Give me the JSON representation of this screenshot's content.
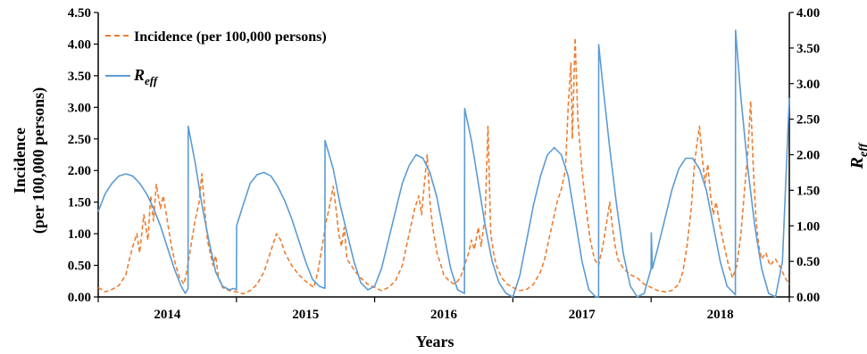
{
  "chart_data": {
    "type": "line",
    "xlabel": "Years",
    "x_tick_labels": [
      "2014",
      "2015",
      "2016",
      "2017",
      "2018"
    ],
    "x_range": [
      2013.5,
      2018.5
    ],
    "ylabel_left": [
      "Incidence",
      "(per 100,000 persons)"
    ],
    "ylim_left": [
      0,
      4.5
    ],
    "yticks_left": [
      "0.00",
      "0.50",
      "1.00",
      "1.50",
      "2.00",
      "2.50",
      "3.00",
      "3.50",
      "4.00",
      "4.50"
    ],
    "ylabel_right": "R",
    "ylabel_right_sub": "eff",
    "ylim_right": [
      0,
      4
    ],
    "yticks_right": [
      "0.00",
      "0.50",
      "1.00",
      "1.50",
      "2.00",
      "2.50",
      "3.00",
      "3.50",
      "4.00"
    ],
    "grid": false,
    "legend_position": "top-left",
    "series": [
      {
        "name": "Incidence (per 100,000 persons)",
        "axis": "left",
        "style": "dashed",
        "color": "#ED7D31",
        "points": [
          [
            2013.5,
            0.15
          ],
          [
            2013.55,
            0.08
          ],
          [
            2013.6,
            0.12
          ],
          [
            2013.65,
            0.18
          ],
          [
            2013.7,
            0.35
          ],
          [
            2013.72,
            0.55
          ],
          [
            2013.75,
            0.8
          ],
          [
            2013.78,
            1.0
          ],
          [
            2013.8,
            0.7
          ],
          [
            2013.83,
            1.3
          ],
          [
            2013.86,
            0.9
          ],
          [
            2013.88,
            1.6
          ],
          [
            2013.9,
            1.2
          ],
          [
            2013.92,
            1.78
          ],
          [
            2013.95,
            1.4
          ],
          [
            2013.97,
            1.6
          ],
          [
            2014.0,
            1.2
          ],
          [
            2014.03,
            0.8
          ],
          [
            2014.06,
            0.5
          ],
          [
            2014.09,
            0.3
          ],
          [
            2014.12,
            0.2
          ],
          [
            2014.14,
            0.4
          ],
          [
            2014.17,
            0.8
          ],
          [
            2014.2,
            1.2
          ],
          [
            2014.23,
            1.5
          ],
          [
            2014.25,
            1.95
          ],
          [
            2014.27,
            1.4
          ],
          [
            2014.29,
            0.9
          ],
          [
            2014.31,
            0.7
          ],
          [
            2014.33,
            0.5
          ],
          [
            2014.35,
            0.65
          ],
          [
            2014.37,
            0.3
          ],
          [
            2014.4,
            0.15
          ],
          [
            2014.45,
            0.1
          ],
          [
            2014.5,
            0.08
          ],
          [
            2014.55,
            0.05
          ],
          [
            2014.6,
            0.1
          ],
          [
            2014.65,
            0.2
          ],
          [
            2014.7,
            0.4
          ],
          [
            2014.73,
            0.6
          ],
          [
            2014.76,
            0.8
          ],
          [
            2014.79,
            1.0
          ],
          [
            2014.82,
            0.9
          ],
          [
            2014.85,
            0.7
          ],
          [
            2014.9,
            0.5
          ],
          [
            2014.95,
            0.35
          ],
          [
            2015.0,
            0.25
          ],
          [
            2015.03,
            0.2
          ],
          [
            2015.06,
            0.15
          ],
          [
            2015.09,
            0.4
          ],
          [
            2015.12,
            0.8
          ],
          [
            2015.15,
            1.2
          ],
          [
            2015.18,
            1.5
          ],
          [
            2015.2,
            1.75
          ],
          [
            2015.22,
            1.4
          ],
          [
            2015.24,
            1.0
          ],
          [
            2015.26,
            0.8
          ],
          [
            2015.28,
            1.1
          ],
          [
            2015.3,
            0.6
          ],
          [
            2015.33,
            0.5
          ],
          [
            2015.36,
            0.4
          ],
          [
            2015.4,
            0.3
          ],
          [
            2015.45,
            0.2
          ],
          [
            2015.5,
            0.15
          ],
          [
            2015.55,
            0.1
          ],
          [
            2015.6,
            0.15
          ],
          [
            2015.65,
            0.25
          ],
          [
            2015.7,
            0.5
          ],
          [
            2015.73,
            0.8
          ],
          [
            2015.76,
            1.1
          ],
          [
            2015.79,
            1.4
          ],
          [
            2015.82,
            1.6
          ],
          [
            2015.84,
            1.3
          ],
          [
            2015.86,
            1.8
          ],
          [
            2015.88,
            2.25
          ],
          [
            2015.9,
            1.5
          ],
          [
            2015.92,
            1.1
          ],
          [
            2015.95,
            0.7
          ],
          [
            2015.98,
            0.5
          ],
          [
            2016.0,
            0.35
          ],
          [
            2016.04,
            0.25
          ],
          [
            2016.08,
            0.2
          ],
          [
            2016.12,
            0.3
          ],
          [
            2016.15,
            0.5
          ],
          [
            2016.18,
            0.7
          ],
          [
            2016.2,
            0.9
          ],
          [
            2016.22,
            0.75
          ],
          [
            2016.25,
            1.1
          ],
          [
            2016.27,
            0.8
          ],
          [
            2016.3,
            1.3
          ],
          [
            2016.32,
            2.7
          ],
          [
            2016.34,
            1.0
          ],
          [
            2016.36,
            0.7
          ],
          [
            2016.38,
            0.5
          ],
          [
            2016.42,
            0.3
          ],
          [
            2016.46,
            0.2
          ],
          [
            2016.5,
            0.15
          ],
          [
            2016.55,
            0.1
          ],
          [
            2016.6,
            0.12
          ],
          [
            2016.65,
            0.2
          ],
          [
            2016.7,
            0.4
          ],
          [
            2016.73,
            0.6
          ],
          [
            2016.76,
            0.9
          ],
          [
            2016.79,
            1.2
          ],
          [
            2016.82,
            1.5
          ],
          [
            2016.85,
            1.7
          ],
          [
            2016.88,
            2.0
          ],
          [
            2016.9,
            3.0
          ],
          [
            2016.92,
            3.7
          ],
          [
            2016.93,
            2.5
          ],
          [
            2016.95,
            4.1
          ],
          [
            2016.97,
            2.8
          ],
          [
            2017.0,
            2.0
          ],
          [
            2017.03,
            1.4
          ],
          [
            2017.06,
            0.9
          ],
          [
            2017.09,
            0.6
          ],
          [
            2017.12,
            0.5
          ],
          [
            2017.15,
            0.8
          ],
          [
            2017.18,
            1.2
          ],
          [
            2017.2,
            1.5
          ],
          [
            2017.22,
            1.1
          ],
          [
            2017.24,
            0.8
          ],
          [
            2017.26,
            0.6
          ],
          [
            2017.3,
            0.45
          ],
          [
            2017.35,
            0.35
          ],
          [
            2017.4,
            0.3
          ],
          [
            2017.45,
            0.2
          ],
          [
            2017.5,
            0.15
          ],
          [
            2017.55,
            0.1
          ],
          [
            2017.6,
            0.08
          ],
          [
            2017.65,
            0.1
          ],
          [
            2017.7,
            0.2
          ],
          [
            2017.73,
            0.4
          ],
          [
            2017.76,
            0.8
          ],
          [
            2017.79,
            1.4
          ],
          [
            2017.81,
            2.0
          ],
          [
            2017.83,
            2.4
          ],
          [
            2017.85,
            2.7
          ],
          [
            2017.87,
            2.2
          ],
          [
            2017.89,
            1.8
          ],
          [
            2017.91,
            2.1
          ],
          [
            2017.93,
            1.6
          ],
          [
            2017.95,
            1.3
          ],
          [
            2017.97,
            1.5
          ],
          [
            2018.0,
            1.1
          ],
          [
            2018.03,
            0.8
          ],
          [
            2018.06,
            0.5
          ],
          [
            2018.09,
            0.3
          ],
          [
            2018.12,
            0.5
          ],
          [
            2018.15,
            1.0
          ],
          [
            2018.18,
            1.8
          ],
          [
            2018.2,
            2.3
          ],
          [
            2018.22,
            3.1
          ],
          [
            2018.24,
            2.0
          ],
          [
            2018.26,
            1.2
          ],
          [
            2018.28,
            0.8
          ],
          [
            2018.3,
            0.6
          ],
          [
            2018.33,
            0.7
          ],
          [
            2018.36,
            0.5
          ],
          [
            2018.4,
            0.6
          ],
          [
            2018.44,
            0.45
          ],
          [
            2018.47,
            0.3
          ],
          [
            2018.5,
            0.2
          ]
        ]
      },
      {
        "name_base": "R",
        "name_sub": "eff",
        "axis": "right",
        "style": "solid",
        "color": "#5B9BD5",
        "points": [
          [
            2013.5,
            1.2
          ],
          [
            2013.55,
            1.45
          ],
          [
            2013.6,
            1.6
          ],
          [
            2013.65,
            1.7
          ],
          [
            2013.7,
            1.73
          ],
          [
            2013.75,
            1.7
          ],
          [
            2013.8,
            1.6
          ],
          [
            2013.85,
            1.45
          ],
          [
            2013.9,
            1.25
          ],
          [
            2013.95,
            1.0
          ],
          [
            2014.0,
            0.7
          ],
          [
            2014.05,
            0.4
          ],
          [
            2014.1,
            0.15
          ],
          [
            2014.13,
            0.05
          ],
          [
            2014.15,
            0.12
          ],
          [
            2014.151,
            2.4
          ],
          [
            2014.2,
            1.9
          ],
          [
            2014.25,
            1.3
          ],
          [
            2014.3,
            0.8
          ],
          [
            2014.35,
            0.35
          ],
          [
            2014.4,
            0.15
          ],
          [
            2014.45,
            0.1
          ],
          [
            2014.48,
            0.12
          ],
          [
            2014.5,
            0.1
          ],
          [
            2014.501,
            1.0
          ],
          [
            2014.55,
            1.3
          ],
          [
            2014.6,
            1.6
          ],
          [
            2014.65,
            1.72
          ],
          [
            2014.7,
            1.75
          ],
          [
            2014.75,
            1.7
          ],
          [
            2014.8,
            1.55
          ],
          [
            2014.85,
            1.35
          ],
          [
            2014.9,
            1.1
          ],
          [
            2014.95,
            0.8
          ],
          [
            2015.0,
            0.5
          ],
          [
            2015.05,
            0.25
          ],
          [
            2015.1,
            0.15
          ],
          [
            2015.14,
            0.12
          ],
          [
            2015.141,
            2.2
          ],
          [
            2015.2,
            1.8
          ],
          [
            2015.25,
            1.3
          ],
          [
            2015.3,
            0.9
          ],
          [
            2015.35,
            0.5
          ],
          [
            2015.4,
            0.2
          ],
          [
            2015.45,
            0.1
          ],
          [
            2015.5,
            0.15
          ],
          [
            2015.55,
            0.4
          ],
          [
            2015.6,
            0.8
          ],
          [
            2015.65,
            1.2
          ],
          [
            2015.7,
            1.6
          ],
          [
            2015.75,
            1.85
          ],
          [
            2015.8,
            2.0
          ],
          [
            2015.85,
            1.95
          ],
          [
            2015.9,
            1.75
          ],
          [
            2015.95,
            1.4
          ],
          [
            2016.0,
            0.9
          ],
          [
            2016.05,
            0.4
          ],
          [
            2016.1,
            0.1
          ],
          [
            2016.15,
            0.05
          ],
          [
            2016.151,
            2.65
          ],
          [
            2016.2,
            2.2
          ],
          [
            2016.25,
            1.6
          ],
          [
            2016.3,
            1.0
          ],
          [
            2016.35,
            0.5
          ],
          [
            2016.4,
            0.2
          ],
          [
            2016.45,
            0.05
          ],
          [
            2016.5,
            0.0
          ],
          [
            2016.55,
            0.3
          ],
          [
            2016.6,
            0.8
          ],
          [
            2016.65,
            1.3
          ],
          [
            2016.7,
            1.7
          ],
          [
            2016.75,
            2.0
          ],
          [
            2016.8,
            2.1
          ],
          [
            2016.85,
            2.0
          ],
          [
            2016.9,
            1.7
          ],
          [
            2016.95,
            1.1
          ],
          [
            2017.0,
            0.5
          ],
          [
            2017.05,
            0.1
          ],
          [
            2017.1,
            0.0
          ],
          [
            2017.12,
            0.0
          ],
          [
            2017.121,
            3.55
          ],
          [
            2017.15,
            3.0
          ],
          [
            2017.2,
            2.1
          ],
          [
            2017.25,
            1.3
          ],
          [
            2017.3,
            0.6
          ],
          [
            2017.35,
            0.15
          ],
          [
            2017.4,
            0.0
          ],
          [
            2017.45,
            0.05
          ],
          [
            2017.5,
            0.4
          ],
          [
            2017.501,
            0.9
          ],
          [
            2017.51,
            0.4
          ],
          [
            2017.55,
            0.7
          ],
          [
            2017.6,
            1.1
          ],
          [
            2017.65,
            1.5
          ],
          [
            2017.7,
            1.8
          ],
          [
            2017.75,
            1.95
          ],
          [
            2017.8,
            1.95
          ],
          [
            2017.85,
            1.8
          ],
          [
            2017.9,
            1.5
          ],
          [
            2017.95,
            1.0
          ],
          [
            2018.0,
            0.5
          ],
          [
            2018.05,
            0.15
          ],
          [
            2018.1,
            0.05
          ],
          [
            2018.11,
            0.03
          ],
          [
            2018.111,
            3.75
          ],
          [
            2018.15,
            2.8
          ],
          [
            2018.2,
            1.8
          ],
          [
            2018.25,
            1.0
          ],
          [
            2018.3,
            0.4
          ],
          [
            2018.35,
            0.05
          ],
          [
            2018.4,
            0.0
          ],
          [
            2018.45,
            0.5
          ],
          [
            2018.5,
            2.8
          ]
        ]
      }
    ]
  }
}
